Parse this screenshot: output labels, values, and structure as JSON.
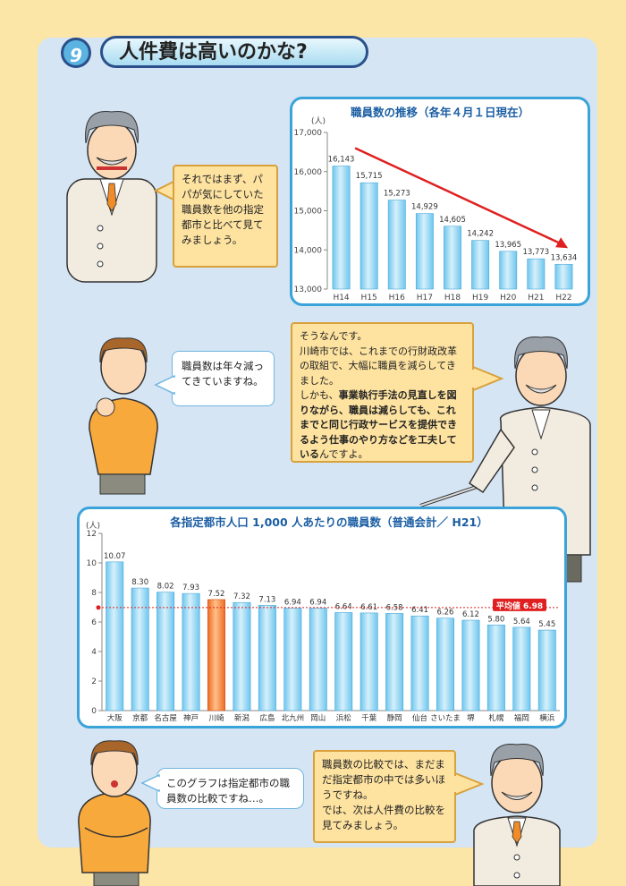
{
  "page": {
    "number": "9",
    "title": "人件費は高いのかな?"
  },
  "bubbles": {
    "dad1": "それではまず、パパが気にしていた職員数を他の指定都市と比べて見てみましょう。",
    "boy1": "職員数は年々減ってきていますね。",
    "dad2_pre": "そうなんです。\n川崎市では、これまでの行財政改革の取組で、大幅に職員を減らしてきました。\nしかも、",
    "dad2_bold": "事業執行手法の見直しを図りながら、職員は減らしても、これまでと同じ行政サービスを提供できるよう仕事のやり方などを工夫している",
    "dad2_post": "んですよ。",
    "boy2": "このグラフは指定都市の職員数の比較ですね…。",
    "dad3": "職員数の比較では、まだまだ指定都市の中では多いほうですね。\nでは、次は人件費の比較を見てみましょう。"
  },
  "chart_data": [
    {
      "type": "bar",
      "title": "職員数の推移（各年４月１日現在）",
      "ylabel": "(人)",
      "ylim": [
        13000,
        17000
      ],
      "yticks": [
        13000,
        14000,
        15000,
        16000,
        17000
      ],
      "ytick_labels": [
        "13,000",
        "14,000",
        "15,000",
        "16,000",
        "17,000"
      ],
      "categories": [
        "H14",
        "H15",
        "H16",
        "H17",
        "H18",
        "H19",
        "H20",
        "H21",
        "H22"
      ],
      "values": [
        16143,
        15715,
        15273,
        14929,
        14605,
        14242,
        13965,
        13773,
        13634
      ],
      "value_labels": [
        "16,143",
        "15,715",
        "15,273",
        "14,929",
        "14,605",
        "14,242",
        "13,965",
        "13,773",
        "13,634"
      ],
      "bar_color": "#6ec6ee",
      "arrow_color": "#e02020"
    },
    {
      "type": "bar",
      "title": "各指定都市人口 1,000 人あたりの職員数（普通会計／ H21）",
      "ylabel": "(人)",
      "ylim": [
        0,
        12
      ],
      "yticks": [
        0,
        2,
        4,
        6,
        8,
        10,
        12
      ],
      "categories": [
        "大阪",
        "京都",
        "名古屋",
        "神戸",
        "川崎",
        "新潟",
        "広島",
        "北九州",
        "岡山",
        "浜松",
        "千葉",
        "静岡",
        "仙台",
        "さいたま",
        "堺",
        "札幌",
        "福岡",
        "横浜"
      ],
      "values": [
        10.07,
        8.3,
        8.02,
        7.93,
        7.52,
        7.32,
        7.13,
        6.94,
        6.94,
        6.64,
        6.61,
        6.58,
        6.41,
        6.26,
        6.12,
        5.8,
        5.64,
        5.45
      ],
      "value_labels": [
        "10.07",
        "8.30",
        "8.02",
        "7.93",
        "7.52",
        "7.32",
        "7.13",
        "6.94",
        "6.94",
        "6.64",
        "6.61",
        "6.58",
        "6.41",
        "6.26",
        "6.12",
        "5.80",
        "5.64",
        "5.45"
      ],
      "highlight": "川崎",
      "bar_color": "#6ec6ee",
      "highlight_color": "#ee6a22",
      "average": 6.98,
      "average_label": "平均値 6.98",
      "average_color": "#e02020"
    }
  ]
}
